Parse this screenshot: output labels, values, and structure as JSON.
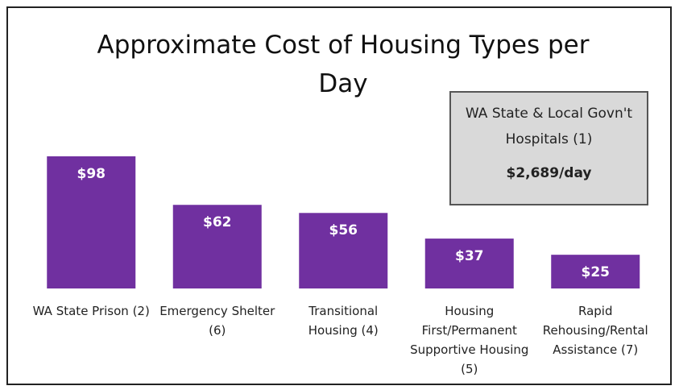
{
  "chart_data": {
    "type": "bar",
    "title": "Approximate Cost of Housing Types per Day",
    "categories": [
      "WA State Prison (2)",
      "Emergency Shelter (6)",
      "Transitional Housing (4)",
      "Housing First/Permanent Supportive Housing (5)",
      "Rapid Rehousing/Rental Assistance (7)"
    ],
    "values": [
      98,
      62,
      56,
      37,
      25
    ],
    "value_labels": [
      "$98",
      "$62",
      "$56",
      "$37",
      "$25"
    ],
    "color": "#7030a0",
    "annotation": {
      "title": "WA State & Local Govn't Hospitals (1)",
      "value": "$2,689/day"
    }
  }
}
